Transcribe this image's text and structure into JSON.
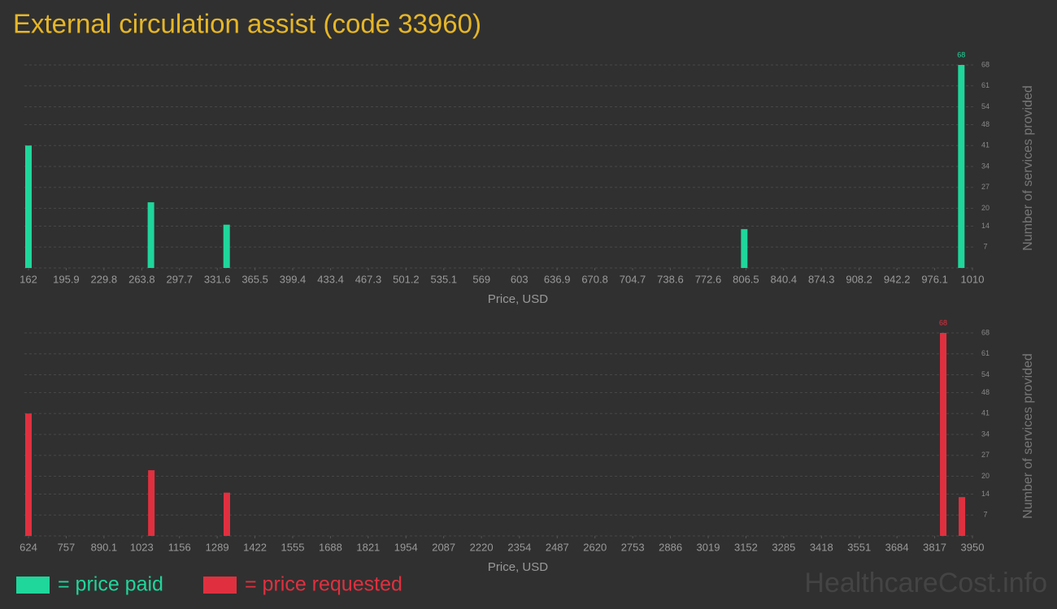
{
  "title": "External circulation assist (code 33960)",
  "watermark": "HealthcareCost.info",
  "chart_data": [
    {
      "type": "bar",
      "x_label": "Price, USD",
      "y_label": "Number of services provided",
      "xlim": [
        162,
        1010
      ],
      "xticks": [
        162,
        195.9,
        229.8,
        263.8,
        297.7,
        331.6,
        365.5,
        399.4,
        433.4,
        467.3,
        501.2,
        535.1,
        569,
        603,
        636.9,
        670.8,
        704.7,
        738.6,
        772.6,
        806.5,
        840.4,
        874.3,
        908.2,
        942.2,
        976.1,
        1010
      ],
      "ylim": [
        0,
        68
      ],
      "yticks": [
        7,
        14,
        20,
        27,
        34,
        41,
        48,
        54,
        61,
        68
      ],
      "grid": true,
      "series": [
        {
          "name": "= price paid",
          "color": "#1fd69b",
          "x": [
            162,
            272,
            340,
            805,
            1000
          ],
          "values": [
            41,
            22,
            14.5,
            13,
            68
          ]
        }
      ]
    },
    {
      "type": "bar",
      "x_label": "Price, USD",
      "y_label": "Number of services provided",
      "xlim": [
        624,
        3950
      ],
      "xticks": [
        624,
        757,
        890.1,
        1023,
        1156,
        1289,
        1422,
        1555,
        1688,
        1821,
        1954,
        2087,
        2220,
        2354,
        2487,
        2620,
        2753,
        2886,
        3019,
        3152,
        3285,
        3418,
        3551,
        3684,
        3817,
        3950
      ],
      "ylim": [
        0,
        68
      ],
      "yticks": [
        7,
        14,
        20,
        27,
        34,
        41,
        48,
        54,
        61,
        68
      ],
      "grid": true,
      "series": [
        {
          "name": "= price requested",
          "color": "#e0303f",
          "x": [
            624,
            1057,
            1323,
            3847,
            3913
          ],
          "values": [
            41,
            22,
            14.5,
            68,
            13
          ]
        }
      ]
    }
  ]
}
